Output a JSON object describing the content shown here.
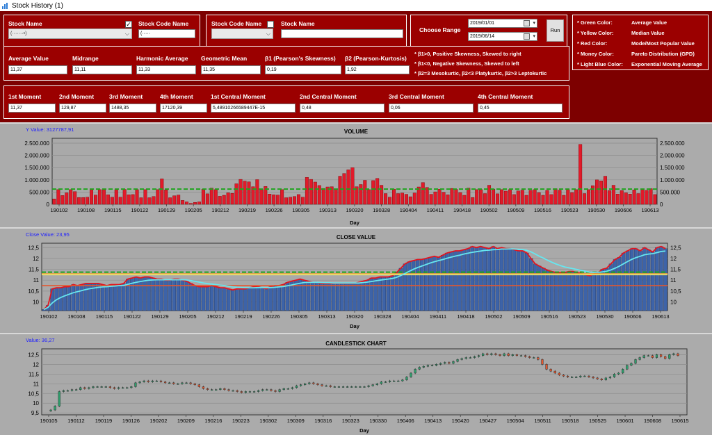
{
  "window": {
    "title": "Stock History (1)"
  },
  "selector1": {
    "stock_name_label": "Stock Name",
    "stock_code_label": "Stock Code Name",
    "checkbox_checked": true,
    "stock_name_value": "(·······•)",
    "stock_code_value": "(·····"
  },
  "selector2": {
    "stock_code_label": "Stock Code Name",
    "stock_name_label": "Stock Name",
    "checkbox_checked": false,
    "stock_code_value": "",
    "stock_name_value": ""
  },
  "range": {
    "label": "Choose Range",
    "start": "2019/01/01",
    "end": "2019/06/14",
    "run_label": "Run"
  },
  "legend": {
    "items": [
      {
        "key": "* Green Color:",
        "value": "Average Value"
      },
      {
        "key": "* Yellow Color:",
        "value": "Median Value"
      },
      {
        "key": "* Red Color:",
        "value": "Mode/Most Popular Value"
      },
      {
        "key": "* Money Color:",
        "value": "Pareto Distribution (GPD)"
      },
      {
        "key": "* Light Blue Color:",
        "value": "Exponential Moving Average"
      }
    ]
  },
  "stats": {
    "fields": [
      {
        "label": "Average Value",
        "value": "11,37"
      },
      {
        "label": "Midrange",
        "value": "11,11"
      },
      {
        "label": "Harmonic Average",
        "value": "11,33"
      },
      {
        "label": "Geometric Mean",
        "value": "11,35"
      },
      {
        "label": "β1 (Pearson's Skewness)",
        "value": "0,19"
      },
      {
        "label": "β2 (Pearson-Kurtosis)",
        "value": "1,92"
      }
    ],
    "notes": [
      "* β1>0, Positive Skewness,  Skewed to right",
      "* β1<0, Negative Skewness, Skewed to left",
      "* β2=3 Mesokurtic, β2<3 Platykurtic, β2>3 Leptokurtic"
    ]
  },
  "moments": {
    "fields": [
      {
        "label": "1st Moment",
        "value": "11,37"
      },
      {
        "label": "2nd Moment",
        "value": "129,87"
      },
      {
        "label": "3rd Moment",
        "value": "1488,35"
      },
      {
        "label": "4th Moment",
        "value": "17120,39"
      },
      {
        "label": "1st Central Moment",
        "value": "5,48910266589447E-15"
      },
      {
        "label": "2nd Central Moment",
        "value": "0,48"
      },
      {
        "label": "3rd Central Moment",
        "value": "0,06"
      },
      {
        "label": "4th Central Moment",
        "value": "0,45"
      }
    ]
  },
  "colors": {
    "bar_red": "#e11a2a",
    "bar_blue": "#3d63a8",
    "green": "#1fa41f",
    "yellow": "#f0f070",
    "mode_red": "#e4572e",
    "money": "#e7a33c",
    "light_blue": "#66e7f0",
    "up": "#2e9e6c",
    "down": "#e4572e"
  },
  "chart_data": [
    {
      "type": "bar",
      "title": "VOLUME",
      "readout": "Y Value: 3127787,91",
      "xlabel": "Day",
      "x_ticks": [
        "190102",
        "190108",
        "190115",
        "190122",
        "190129",
        "190205",
        "190212",
        "190219",
        "190226",
        "190305",
        "190313",
        "190320",
        "190328",
        "190404",
        "190411",
        "190418",
        "190502",
        "190509",
        "190516",
        "190523",
        "190530",
        "190606",
        "190613"
      ],
      "y_ticks": [
        "0",
        "500.000",
        "1.000.000",
        "1.500.000",
        "2.000.000",
        "2.500.000"
      ],
      "ylim": [
        0,
        2700000
      ],
      "average": 620000,
      "values": [
        220000,
        600000,
        360000,
        470000,
        600000,
        520000,
        280000,
        280000,
        290000,
        600000,
        380000,
        600000,
        600000,
        390000,
        290000,
        600000,
        290000,
        610000,
        390000,
        400000,
        600000,
        270000,
        600000,
        270000,
        320000,
        600000,
        1040000,
        590000,
        270000,
        350000,
        380000,
        160000,
        100000,
        40000,
        80000,
        100000,
        620000,
        430000,
        660000,
        600000,
        330000,
        370000,
        470000,
        450000,
        840000,
        1020000,
        950000,
        920000,
        720000,
        1010000,
        600000,
        730000,
        420000,
        390000,
        380000,
        600000,
        270000,
        290000,
        320000,
        400000,
        290000,
        1100000,
        1020000,
        910000,
        770000,
        650000,
        710000,
        720000,
        610000,
        1150000,
        1260000,
        1410000,
        1500000,
        720000,
        810000,
        980000,
        600000,
        970000,
        1060000,
        780000,
        440000,
        290000,
        620000,
        440000,
        460000,
        410000,
        310000,
        460000,
        710000,
        890000,
        690000,
        410000,
        510000,
        620000,
        490000,
        390000,
        650000,
        610000,
        480000,
        370000,
        660000,
        280000,
        600000,
        600000,
        440000,
        780000,
        620000,
        430000,
        600000,
        540000,
        600000,
        400000,
        550000,
        580000,
        370000,
        570000,
        600000,
        480000,
        370000,
        570000,
        400000,
        640000,
        580000,
        370000,
        600000,
        480000,
        600000,
        2450000,
        440000,
        600000,
        760000,
        1000000,
        960000,
        1150000,
        560000,
        780000,
        420000,
        560000,
        470000,
        420000,
        590000,
        440000,
        600000,
        570000,
        640000,
        400000
      ]
    },
    {
      "type": "bar",
      "title": "CLOSE VALUE",
      "readout": "Close Value: 23,95",
      "xlabel": "Day",
      "x_ticks": [
        "190102",
        "190108",
        "190115",
        "190122",
        "190129",
        "190205",
        "190212",
        "190219",
        "190226",
        "190305",
        "190313",
        "190320",
        "190328",
        "190404",
        "190411",
        "190418",
        "190502",
        "190509",
        "190516",
        "190523",
        "190530",
        "190606",
        "190613"
      ],
      "y_ticks": [
        "10",
        "10,5",
        "11",
        "11,5",
        "12",
        "12,5"
      ],
      "ylim": [
        9.6,
        12.7
      ],
      "average": 11.37,
      "median": 11.25,
      "mode": 10.75,
      "money": 11.3,
      "values": [
        9.65,
        9.85,
        10.6,
        10.65,
        10.65,
        10.7,
        10.7,
        10.8,
        10.75,
        10.8,
        10.85,
        10.85,
        10.85,
        10.85,
        10.8,
        10.75,
        10.8,
        10.8,
        10.8,
        10.85,
        11.05,
        11.1,
        11.15,
        11.1,
        11.15,
        11.15,
        11.1,
        11.05,
        11.05,
        11.0,
        11.0,
        11.05,
        11.05,
        11.0,
        10.95,
        10.85,
        10.75,
        10.7,
        10.7,
        10.7,
        10.75,
        10.7,
        10.65,
        10.65,
        10.6,
        10.55,
        10.6,
        10.6,
        10.6,
        10.65,
        10.7,
        10.7,
        10.65,
        10.6,
        10.7,
        10.75,
        10.75,
        10.8,
        10.9,
        10.95,
        11.0,
        11.05,
        11.0,
        10.95,
        10.9,
        10.9,
        10.85,
        10.85,
        10.85,
        10.85,
        10.85,
        10.85,
        10.85,
        10.85,
        10.85,
        10.9,
        10.95,
        11.0,
        11.1,
        11.1,
        11.15,
        11.15,
        11.15,
        11.2,
        11.35,
        11.55,
        11.75,
        11.85,
        11.9,
        11.95,
        11.95,
        12.0,
        12.05,
        12.1,
        12.05,
        12.15,
        12.25,
        12.3,
        12.35,
        12.35,
        12.4,
        12.45,
        12.55,
        12.5,
        12.55,
        12.5,
        12.45,
        12.55,
        12.45,
        12.5,
        12.45,
        12.45,
        12.4,
        12.35,
        12.35,
        12.25,
        12.0,
        11.75,
        11.65,
        11.55,
        11.45,
        11.4,
        11.35,
        11.35,
        11.35,
        11.4,
        11.4,
        11.35,
        11.3,
        11.25,
        11.2,
        11.3,
        11.35,
        11.5,
        11.55,
        11.75,
        11.95,
        12.05,
        12.25,
        12.35,
        12.45,
        12.45,
        12.35,
        12.5,
        12.4,
        12.3,
        12.5,
        12.55,
        12.45
      ],
      "ema": [
        9.65,
        9.75,
        9.95,
        10.1,
        10.2,
        10.28,
        10.35,
        10.42,
        10.47,
        10.52,
        10.57,
        10.61,
        10.64,
        10.67,
        10.69,
        10.7,
        10.72,
        10.73,
        10.75,
        10.76,
        10.81,
        10.86,
        10.9,
        10.94,
        10.97,
        11.0,
        11.01,
        11.02,
        11.02,
        11.02,
        11.02,
        11.02,
        11.02,
        11.02,
        11.01,
        10.98,
        10.95,
        10.91,
        10.87,
        10.84,
        10.82,
        10.8,
        10.77,
        10.75,
        10.72,
        10.69,
        10.67,
        10.66,
        10.65,
        10.65,
        10.65,
        10.66,
        10.66,
        10.65,
        10.66,
        10.67,
        10.69,
        10.71,
        10.74,
        10.78,
        10.82,
        10.86,
        10.89,
        10.9,
        10.9,
        10.9,
        10.89,
        10.88,
        10.88,
        10.87,
        10.87,
        10.87,
        10.87,
        10.87,
        10.87,
        10.87,
        10.89,
        10.91,
        10.94,
        10.97,
        11.0,
        11.03,
        11.05,
        11.08,
        11.13,
        11.21,
        11.31,
        11.41,
        11.5,
        11.58,
        11.65,
        11.72,
        11.79,
        11.85,
        11.9,
        11.95,
        12.01,
        12.06,
        12.11,
        12.15,
        12.2,
        12.24,
        12.28,
        12.31,
        12.34,
        12.37,
        12.38,
        12.4,
        12.41,
        12.43,
        12.43,
        12.44,
        12.43,
        12.42,
        12.41,
        12.37,
        12.3,
        12.2,
        12.1,
        12.01,
        11.91,
        11.82,
        11.74,
        11.67,
        11.61,
        11.57,
        11.53,
        11.49,
        11.45,
        11.41,
        11.37,
        11.36,
        11.36,
        11.38,
        11.41,
        11.47,
        11.55,
        11.64,
        11.75,
        11.86,
        11.96,
        12.04,
        12.1,
        12.17,
        12.2,
        12.22,
        12.27,
        12.32,
        12.34
      ]
    },
    {
      "type": "candlestick",
      "title": "CANDLESTICK CHART",
      "readout": "Value: 36,27",
      "xlabel": "Day",
      "x_ticks": [
        "190105",
        "190112",
        "190119",
        "190126",
        "190202",
        "190209",
        "190216",
        "190223",
        "190302",
        "190309",
        "190316",
        "190323",
        "190330",
        "190406",
        "190413",
        "190420",
        "190427",
        "190504",
        "190511",
        "190518",
        "190525",
        "190601",
        "190608",
        "190615"
      ],
      "y_ticks": [
        "9,5",
        "10",
        "10,5",
        "11",
        "11,5",
        "12",
        "12,5"
      ],
      "ylim": [
        9.4,
        12.8
      ]
    }
  ]
}
